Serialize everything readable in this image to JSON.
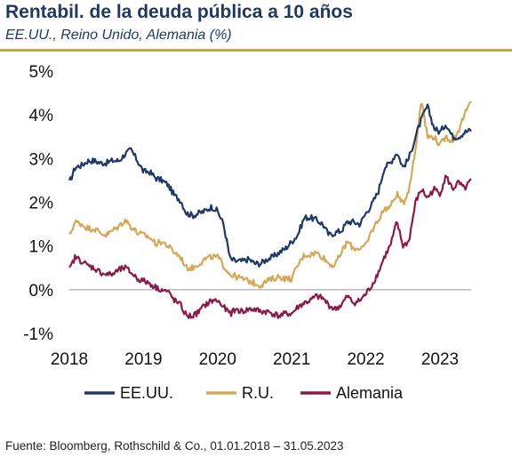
{
  "header": {
    "title": "Rentabil. de la deuda pública a 10 años",
    "subtitle": "EE.UU., Reino Unido, Alemania (%)"
  },
  "footer": {
    "source": "Fuente: Bloomberg, Rothschild & Co., 01.01.2018 – 31.05.2023"
  },
  "chart_data": {
    "type": "line",
    "title": "Rentabil. de la deuda pública a 10 años",
    "subtitle": "EE.UU., Reino Unido, Alemania (%)",
    "xlabel": "",
    "ylabel": "",
    "x_ticks": [
      "2018",
      "2019",
      "2020",
      "2021",
      "2022",
      "2023"
    ],
    "y_ticks": [
      "-1%",
      "0%",
      "1%",
      "2%",
      "3%",
      "4%",
      "5%"
    ],
    "ylim": [
      -1,
      5
    ],
    "xlim": [
      2018.0,
      2023.42
    ],
    "grid": false,
    "legend_position": "bottom",
    "x": [
      2018.0,
      2018.08,
      2018.17,
      2018.25,
      2018.33,
      2018.42,
      2018.5,
      2018.58,
      2018.67,
      2018.75,
      2018.83,
      2018.92,
      2019.0,
      2019.08,
      2019.17,
      2019.25,
      2019.33,
      2019.42,
      2019.5,
      2019.58,
      2019.67,
      2019.75,
      2019.83,
      2019.92,
      2020.0,
      2020.08,
      2020.17,
      2020.25,
      2020.33,
      2020.42,
      2020.5,
      2020.58,
      2020.67,
      2020.75,
      2020.83,
      2020.92,
      2021.0,
      2021.08,
      2021.17,
      2021.25,
      2021.33,
      2021.42,
      2021.5,
      2021.58,
      2021.67,
      2021.75,
      2021.83,
      2021.92,
      2022.0,
      2022.08,
      2022.17,
      2022.25,
      2022.33,
      2022.42,
      2022.5,
      2022.58,
      2022.67,
      2022.75,
      2022.83,
      2022.92,
      2023.0,
      2023.08,
      2023.17,
      2023.25,
      2023.33,
      2023.42
    ],
    "series": [
      {
        "name": "EE.UU.",
        "color": "#1f3864",
        "values": [
          2.45,
          2.8,
          2.85,
          2.95,
          2.95,
          2.9,
          2.9,
          2.95,
          2.95,
          3.1,
          3.2,
          2.95,
          2.7,
          2.7,
          2.55,
          2.5,
          2.4,
          2.15,
          2.05,
          1.75,
          1.7,
          1.75,
          1.8,
          1.9,
          1.8,
          1.5,
          0.7,
          0.65,
          0.65,
          0.7,
          0.6,
          0.6,
          0.7,
          0.75,
          0.85,
          0.95,
          1.1,
          1.25,
          1.65,
          1.65,
          1.6,
          1.5,
          1.25,
          1.3,
          1.35,
          1.55,
          1.55,
          1.5,
          1.75,
          1.95,
          2.25,
          2.8,
          2.9,
          3.15,
          2.8,
          3.0,
          3.5,
          3.9,
          4.2,
          3.7,
          3.6,
          3.8,
          3.5,
          3.5,
          3.6,
          3.65
        ]
      },
      {
        "name": "R.U.",
        "color": "#d4a85a",
        "values": [
          1.25,
          1.55,
          1.5,
          1.4,
          1.4,
          1.3,
          1.25,
          1.35,
          1.45,
          1.6,
          1.45,
          1.3,
          1.25,
          1.2,
          1.05,
          1.1,
          1.0,
          0.85,
          0.75,
          0.5,
          0.5,
          0.6,
          0.7,
          0.75,
          0.75,
          0.55,
          0.35,
          0.3,
          0.25,
          0.2,
          0.15,
          0.1,
          0.2,
          0.25,
          0.3,
          0.25,
          0.25,
          0.55,
          0.8,
          0.8,
          0.85,
          0.75,
          0.6,
          0.55,
          0.85,
          1.1,
          0.95,
          0.95,
          1.0,
          1.35,
          1.6,
          1.85,
          1.9,
          2.2,
          1.95,
          2.3,
          3.2,
          4.4,
          3.5,
          3.5,
          3.3,
          3.5,
          3.4,
          3.65,
          4.0,
          4.3
        ]
      },
      {
        "name": "Alemania",
        "color": "#8b1a4a",
        "values": [
          0.45,
          0.75,
          0.65,
          0.55,
          0.5,
          0.4,
          0.35,
          0.35,
          0.45,
          0.5,
          0.4,
          0.25,
          0.2,
          0.15,
          0.05,
          0.0,
          -0.05,
          -0.25,
          -0.35,
          -0.6,
          -0.6,
          -0.5,
          -0.35,
          -0.25,
          -0.25,
          -0.4,
          -0.55,
          -0.45,
          -0.5,
          -0.45,
          -0.45,
          -0.5,
          -0.5,
          -0.55,
          -0.6,
          -0.55,
          -0.55,
          -0.4,
          -0.3,
          -0.25,
          -0.15,
          -0.2,
          -0.35,
          -0.45,
          -0.35,
          -0.15,
          -0.3,
          -0.25,
          -0.1,
          0.1,
          0.4,
          0.75,
          1.0,
          1.55,
          1.0,
          1.1,
          2.0,
          2.3,
          2.1,
          2.3,
          2.2,
          2.6,
          2.3,
          2.45,
          2.3,
          2.5
        ]
      }
    ]
  }
}
